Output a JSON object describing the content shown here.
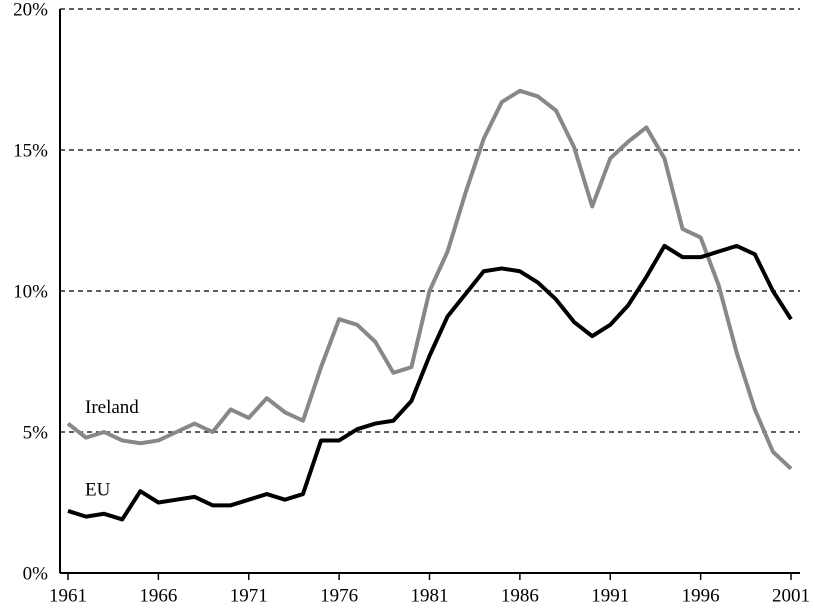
{
  "chart_data": {
    "type": "line",
    "x": [
      1961,
      1962,
      1963,
      1964,
      1965,
      1966,
      1967,
      1968,
      1969,
      1970,
      1971,
      1972,
      1973,
      1974,
      1975,
      1976,
      1977,
      1978,
      1979,
      1980,
      1981,
      1982,
      1983,
      1984,
      1985,
      1986,
      1987,
      1988,
      1989,
      1990,
      1991,
      1992,
      1993,
      1994,
      1995,
      1996,
      1997,
      1998,
      1999,
      2000,
      2001
    ],
    "series": [
      {
        "name": "Ireland",
        "color": "#888888",
        "values": [
          5.3,
          4.8,
          5.0,
          4.7,
          4.6,
          4.7,
          5.0,
          5.3,
          5.0,
          5.8,
          5.5,
          6.2,
          5.7,
          5.4,
          7.3,
          9.0,
          8.8,
          8.2,
          7.1,
          7.3,
          10.0,
          11.4,
          13.5,
          15.4,
          16.7,
          17.1,
          16.9,
          16.4,
          15.1,
          13.0,
          14.7,
          15.3,
          15.8,
          14.7,
          12.2,
          11.9,
          10.2,
          7.8,
          5.8,
          4.3,
          3.7
        ]
      },
      {
        "name": "EU",
        "color": "#000000",
        "values": [
          2.2,
          2.0,
          2.1,
          1.9,
          2.9,
          2.5,
          2.6,
          2.7,
          2.4,
          2.4,
          2.6,
          2.8,
          2.6,
          2.8,
          4.7,
          4.7,
          5.1,
          5.3,
          5.4,
          6.1,
          7.7,
          9.1,
          9.9,
          10.7,
          10.8,
          10.7,
          10.3,
          9.7,
          8.9,
          8.4,
          8.8,
          9.5,
          10.5,
          11.6,
          11.2,
          11.2,
          11.4,
          11.6,
          11.3,
          10.0,
          9.0
        ]
      }
    ],
    "xlim": [
      1961,
      2001
    ],
    "xticks": [
      1961,
      1966,
      1971,
      1976,
      1981,
      1986,
      1991,
      1996,
      2001
    ],
    "ylim": [
      0,
      20
    ],
    "yticks": [
      {
        "value": 0,
        "label": "0%"
      },
      {
        "value": 5,
        "label": "5%"
      },
      {
        "value": 10,
        "label": "10%"
      },
      {
        "value": 15,
        "label": "15%"
      },
      {
        "value": 20,
        "label": "20%"
      }
    ],
    "grid": true
  }
}
